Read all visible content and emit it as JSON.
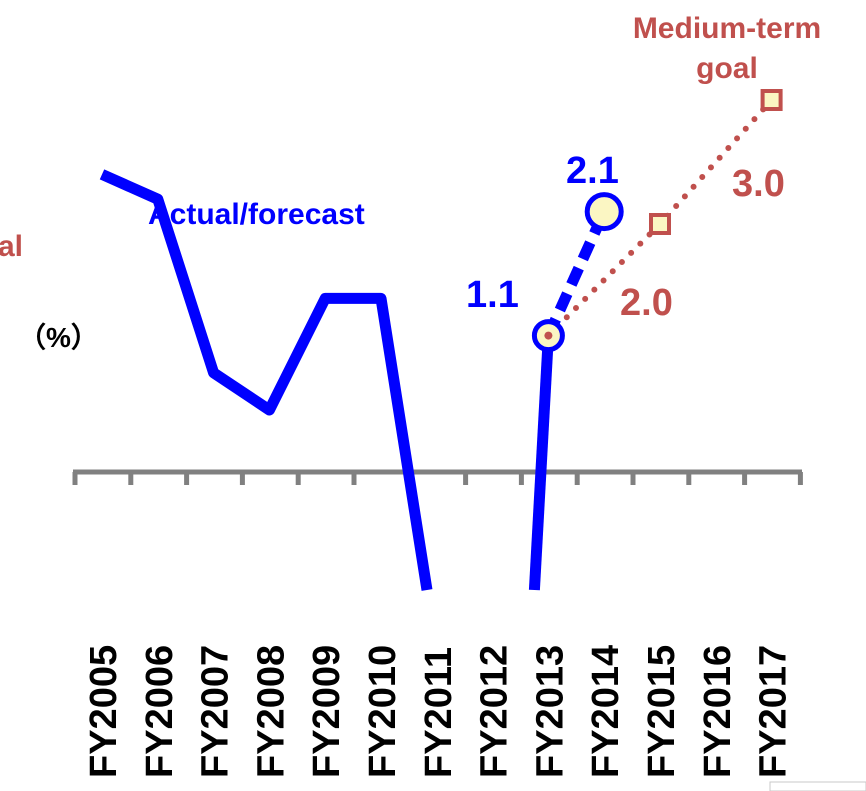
{
  "chart_data": {
    "type": "line",
    "categories": [
      "FY2005",
      "FY2006",
      "FY2007",
      "FY2008",
      "FY2009",
      "FY2010",
      "FY2011",
      "FY2012",
      "FY2013",
      "FY2014",
      "FY2015",
      "FY2016",
      "FY2017"
    ],
    "ylabel": "%",
    "series": [
      {
        "name": "Actual/forecast",
        "color": "#0000ff",
        "style": "solid",
        "values": [
          2.4,
          2.2,
          0.8,
          0.5,
          1.4,
          1.4,
          null,
          null,
          1.1,
          null,
          null,
          null,
          null
        ]
      },
      {
        "name": "",
        "color": "#0000ff",
        "style": "dashed",
        "values": [
          null,
          null,
          null,
          null,
          null,
          null,
          null,
          null,
          1.1,
          2.1,
          null,
          null,
          null
        ]
      },
      {
        "name": "Medium-term goal",
        "color": "#c0504d",
        "style": "dotted",
        "values": [
          null,
          null,
          null,
          null,
          null,
          null,
          null,
          null,
          1.1,
          null,
          2.0,
          null,
          3.0
        ]
      }
    ],
    "annotations": {
      "actual_label": "Actual/forecast",
      "goal_label_line1": "Medium-term",
      "goal_label_line2": "goal",
      "left_clipped_label": "al",
      "value_fy2013": "1.1",
      "value_fy2014": "2.1",
      "goal_fy2015": "2.0",
      "goal_fy2017": "3.0"
    },
    "colors": {
      "actual": "#0000ff",
      "goal": "#c0504d",
      "marker_fill": "#fbf6c3",
      "axis": "#808080"
    }
  }
}
